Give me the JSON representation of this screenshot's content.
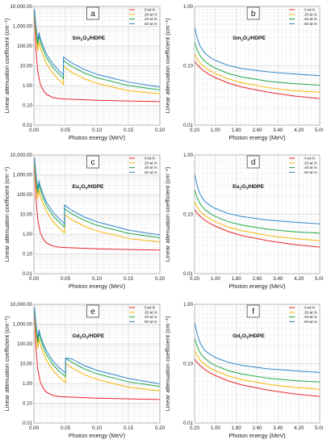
{
  "chart_data": [
    {
      "type": "line",
      "panel": "a",
      "title": {
        "pre": "Sm",
        "s1": "2",
        "mid": "O",
        "s2": "3",
        "post": "/HDPE"
      },
      "xlabel": "Photon energy (MeV)",
      "ylabel": "Linear attenuation coefficient (cm⁻¹)",
      "xscale": "linear",
      "yscale": "log",
      "xlim": [
        0,
        0.2
      ],
      "ylim": [
        0.01,
        10000
      ],
      "xticks": [
        "0.00",
        "0.05",
        "0.10",
        "0.15",
        "0.20"
      ],
      "yticks": [
        "0.01",
        "0.10",
        "1.00",
        "10.00",
        "100.00",
        "1,000.00",
        "10,000.00"
      ],
      "legend_position": "top-right",
      "series": [
        {
          "name": "0 wt.%",
          "color": "#e8262b",
          "x": [
            0.001,
            0.003,
            0.006,
            0.01,
            0.015,
            0.02,
            0.03,
            0.04,
            0.05,
            0.08,
            0.1,
            0.15,
            0.2
          ],
          "y": [
            3000,
            80,
            5.5,
            1.2,
            0.55,
            0.36,
            0.25,
            0.22,
            0.21,
            0.19,
            0.18,
            0.165,
            0.155
          ]
        },
        {
          "name": "20 wt.%",
          "color": "#f5b800",
          "x": [
            0.001,
            0.003,
            0.006,
            0.008,
            0.01,
            0.015,
            0.02,
            0.03,
            0.04,
            0.0468,
            0.0469,
            0.05,
            0.06,
            0.08,
            0.1,
            0.15,
            0.2
          ],
          "y": [
            4500,
            400,
            60,
            160,
            85,
            30,
            13,
            4.2,
            1.9,
            1.15,
            9.5,
            7.8,
            4.7,
            2.2,
            1.3,
            0.55,
            0.38
          ]
        },
        {
          "name": "40 wt.%",
          "color": "#1daa4a",
          "x": [
            0.001,
            0.003,
            0.006,
            0.008,
            0.01,
            0.015,
            0.02,
            0.03,
            0.04,
            0.0468,
            0.0469,
            0.05,
            0.06,
            0.08,
            0.1,
            0.15,
            0.2
          ],
          "y": [
            5500,
            800,
            120,
            320,
            170,
            60,
            26,
            8.3,
            3.8,
            2.3,
            19,
            15.5,
            9.3,
            4.3,
            2.5,
            1.0,
            0.6
          ]
        },
        {
          "name": "60 wt.%",
          "color": "#2e86c8",
          "x": [
            0.001,
            0.003,
            0.006,
            0.008,
            0.01,
            0.015,
            0.02,
            0.03,
            0.04,
            0.0468,
            0.0469,
            0.05,
            0.06,
            0.08,
            0.1,
            0.15,
            0.2
          ],
          "y": [
            7000,
            1200,
            180,
            480,
            255,
            90,
            39,
            12.5,
            5.6,
            3.4,
            28,
            23,
            14,
            6.5,
            3.7,
            1.5,
            0.85
          ]
        }
      ]
    },
    {
      "type": "line",
      "panel": "b",
      "title": {
        "pre": "Sm",
        "s1": "2",
        "mid": "O",
        "s2": "3",
        "post": "/HDPE"
      },
      "xlabel": "Photon energy (MeV)",
      "ylabel": "Linear attenuation coefficient (cm⁻¹)",
      "xscale": "linear",
      "yscale": "log",
      "xlim": [
        0.2,
        5.0
      ],
      "ylim": [
        0.01,
        1.0
      ],
      "xticks": [
        "0.20",
        "1.00",
        "1.80",
        "2.60",
        "3.40",
        "4.20",
        "5.00"
      ],
      "yticks": [
        "0.01",
        "0.10",
        "1.00"
      ],
      "legend_position": "top-right",
      "series": [
        {
          "name": "0 wt.%",
          "color": "#e8262b",
          "x": [
            0.2,
            0.3,
            0.4,
            0.5,
            0.6,
            0.8,
            1.0,
            1.5,
            2.0,
            3.0,
            4.0,
            5.0
          ],
          "y": [
            0.12,
            0.104,
            0.094,
            0.086,
            0.079,
            0.07,
            0.063,
            0.051,
            0.044,
            0.036,
            0.031,
            0.028
          ]
        },
        {
          "name": "20 wt.%",
          "color": "#f5b800",
          "x": [
            0.2,
            0.3,
            0.4,
            0.5,
            0.6,
            0.8,
            1.0,
            1.5,
            2.0,
            3.0,
            4.0,
            5.0
          ],
          "y": [
            0.16,
            0.13,
            0.112,
            0.102,
            0.094,
            0.082,
            0.074,
            0.06,
            0.052,
            0.043,
            0.038,
            0.036
          ]
        },
        {
          "name": "40 wt.%",
          "color": "#1daa4a",
          "x": [
            0.2,
            0.3,
            0.4,
            0.5,
            0.6,
            0.8,
            1.0,
            1.5,
            2.0,
            3.0,
            4.0,
            5.0
          ],
          "y": [
            0.25,
            0.185,
            0.15,
            0.132,
            0.118,
            0.102,
            0.091,
            0.074,
            0.065,
            0.055,
            0.05,
            0.047
          ]
        },
        {
          "name": "60 wt.%",
          "color": "#2e86c8",
          "x": [
            0.2,
            0.3,
            0.4,
            0.5,
            0.6,
            0.8,
            1.0,
            1.5,
            2.0,
            3.0,
            4.0,
            5.0
          ],
          "y": [
            0.45,
            0.29,
            0.22,
            0.185,
            0.162,
            0.138,
            0.123,
            0.101,
            0.09,
            0.079,
            0.073,
            0.068
          ]
        }
      ]
    },
    {
      "type": "line",
      "panel": "c",
      "title": {
        "pre": "Eu",
        "s1": "2",
        "mid": "O",
        "s2": "3",
        "post": "/HDPE"
      },
      "xlabel": "Photon energy (MeV)",
      "ylabel": "Linear attenuation coefficient (cm⁻¹)",
      "xscale": "linear",
      "yscale": "log",
      "xlim": [
        0,
        0.2
      ],
      "ylim": [
        0.01,
        10000
      ],
      "xticks": [
        "0.00",
        "0.05",
        "0.10",
        "0.15",
        "0.20"
      ],
      "yticks": [
        "0.01",
        "0.10",
        "1.00",
        "10.00",
        "100.00",
        "1,000.00",
        "10,000.00"
      ],
      "legend_position": "top-right",
      "series": [
        {
          "name": "0 wt.%",
          "color": "#e8262b",
          "x": [
            0.001,
            0.003,
            0.006,
            0.01,
            0.015,
            0.02,
            0.03,
            0.04,
            0.05,
            0.08,
            0.1,
            0.15,
            0.2
          ],
          "y": [
            3000,
            80,
            5.5,
            1.2,
            0.55,
            0.36,
            0.25,
            0.22,
            0.21,
            0.19,
            0.18,
            0.165,
            0.155
          ]
        },
        {
          "name": "20 wt.%",
          "color": "#f5b800",
          "x": [
            0.001,
            0.003,
            0.006,
            0.008,
            0.01,
            0.015,
            0.02,
            0.03,
            0.04,
            0.0485,
            0.0486,
            0.05,
            0.06,
            0.08,
            0.1,
            0.15,
            0.2
          ],
          "y": [
            4500,
            400,
            60,
            170,
            90,
            32,
            14,
            4.4,
            2.0,
            1.15,
            10,
            9.0,
            5.4,
            2.5,
            1.45,
            0.6,
            0.4
          ]
        },
        {
          "name": "40 wt.%",
          "color": "#1daa4a",
          "x": [
            0.001,
            0.003,
            0.006,
            0.008,
            0.01,
            0.015,
            0.02,
            0.03,
            0.04,
            0.0485,
            0.0486,
            0.05,
            0.06,
            0.08,
            0.1,
            0.15,
            0.2
          ],
          "y": [
            5500,
            800,
            120,
            340,
            180,
            64,
            27,
            8.7,
            4.0,
            2.3,
            20,
            18,
            10.7,
            4.9,
            2.8,
            1.1,
            0.65
          ]
        },
        {
          "name": "60 wt.%",
          "color": "#2e86c8",
          "x": [
            0.001,
            0.003,
            0.006,
            0.008,
            0.01,
            0.015,
            0.02,
            0.03,
            0.04,
            0.0485,
            0.0486,
            0.05,
            0.06,
            0.08,
            0.1,
            0.15,
            0.2
          ],
          "y": [
            7000,
            1200,
            180,
            500,
            270,
            96,
            41,
            13,
            6.0,
            3.4,
            30,
            27,
            16,
            7.3,
            4.2,
            1.6,
            0.9
          ]
        }
      ]
    },
    {
      "type": "line",
      "panel": "d",
      "title": {
        "pre": "Eu",
        "s1": "2",
        "mid": "O",
        "s2": "3",
        "post": "/HDPE"
      },
      "xlabel": "Photon energy (MeV)",
      "ylabel": "Linear attenuation coefficient (cm⁻¹)",
      "xscale": "linear",
      "yscale": "log",
      "xlim": [
        0.2,
        5.0
      ],
      "ylim": [
        0.01,
        1.0
      ],
      "xticks": [
        "0.20",
        "1.00",
        "1.80",
        "2.60",
        "3.40",
        "4.20",
        "5.00"
      ],
      "yticks": [
        "0.01",
        "0.10",
        "1.00"
      ],
      "legend_position": "top-right",
      "series": [
        {
          "name": "0 wt.%",
          "color": "#e8262b",
          "x": [
            0.2,
            0.3,
            0.4,
            0.5,
            0.6,
            0.8,
            1.0,
            1.5,
            2.0,
            3.0,
            4.0,
            5.0
          ],
          "y": [
            0.12,
            0.104,
            0.094,
            0.086,
            0.079,
            0.07,
            0.063,
            0.051,
            0.044,
            0.036,
            0.031,
            0.028
          ]
        },
        {
          "name": "20 wt.%",
          "color": "#f5b800",
          "x": [
            0.2,
            0.3,
            0.4,
            0.5,
            0.6,
            0.8,
            1.0,
            1.5,
            2.0,
            3.0,
            4.0,
            5.0
          ],
          "y": [
            0.165,
            0.133,
            0.114,
            0.103,
            0.095,
            0.083,
            0.075,
            0.061,
            0.053,
            0.044,
            0.039,
            0.036
          ]
        },
        {
          "name": "40 wt.%",
          "color": "#1daa4a",
          "x": [
            0.2,
            0.3,
            0.4,
            0.5,
            0.6,
            0.8,
            1.0,
            1.5,
            2.0,
            3.0,
            4.0,
            5.0
          ],
          "y": [
            0.26,
            0.19,
            0.153,
            0.134,
            0.12,
            0.103,
            0.092,
            0.075,
            0.066,
            0.056,
            0.051,
            0.048
          ]
        },
        {
          "name": "60 wt.%",
          "color": "#2e86c8",
          "x": [
            0.2,
            0.3,
            0.4,
            0.5,
            0.6,
            0.8,
            1.0,
            1.5,
            2.0,
            3.0,
            4.0,
            5.0
          ],
          "y": [
            0.48,
            0.3,
            0.225,
            0.188,
            0.164,
            0.14,
            0.125,
            0.103,
            0.092,
            0.08,
            0.074,
            0.069
          ]
        }
      ]
    },
    {
      "type": "line",
      "panel": "e",
      "title": {
        "pre": "Gd",
        "s1": "2",
        "mid": "O",
        "s2": "3",
        "post": "/HDPE"
      },
      "xlabel": "Photon energy (MeV)",
      "ylabel": "Linear attenuation coefficient (cm⁻¹)",
      "xscale": "linear",
      "yscale": "log",
      "xlim": [
        0,
        0.2
      ],
      "ylim": [
        0.01,
        10000
      ],
      "xticks": [
        "0.00",
        "0.05",
        "0.10",
        "0.15",
        "0.20"
      ],
      "yticks": [
        "0.01",
        "0.10",
        "1.00",
        "10.00",
        "100.00",
        "1,000.00",
        "10,000.00"
      ],
      "legend_position": "top-right",
      "series": [
        {
          "name": "0 wt.%",
          "color": "#e8262b",
          "x": [
            0.001,
            0.003,
            0.006,
            0.01,
            0.015,
            0.02,
            0.03,
            0.04,
            0.05,
            0.08,
            0.1,
            0.15,
            0.2
          ],
          "y": [
            3000,
            80,
            5.5,
            1.2,
            0.55,
            0.36,
            0.25,
            0.22,
            0.21,
            0.19,
            0.18,
            0.165,
            0.155
          ]
        },
        {
          "name": "20 wt.%",
          "color": "#f5b800",
          "x": [
            0.001,
            0.003,
            0.006,
            0.008,
            0.01,
            0.015,
            0.02,
            0.03,
            0.04,
            0.0502,
            0.0503,
            0.06,
            0.08,
            0.1,
            0.15,
            0.2
          ],
          "y": [
            4500,
            400,
            60,
            180,
            95,
            34,
            15,
            4.7,
            2.1,
            1.1,
            10,
            6.2,
            2.8,
            1.6,
            0.65,
            0.42
          ]
        },
        {
          "name": "40 wt.%",
          "color": "#1daa4a",
          "x": [
            0.001,
            0.003,
            0.006,
            0.008,
            0.01,
            0.015,
            0.02,
            0.03,
            0.04,
            0.0502,
            0.0503,
            0.06,
            0.08,
            0.1,
            0.15,
            0.2
          ],
          "y": [
            5500,
            800,
            120,
            360,
            190,
            68,
            29,
            9.2,
            4.2,
            2.2,
            19,
            12,
            5.4,
            3.1,
            1.2,
            0.7
          ]
        },
        {
          "name": "60 wt.%",
          "color": "#2e86c8",
          "x": [
            0.001,
            0.003,
            0.006,
            0.008,
            0.01,
            0.015,
            0.02,
            0.03,
            0.04,
            0.0502,
            0.0503,
            0.06,
            0.08,
            0.1,
            0.15,
            0.2
          ],
          "y": [
            7000,
            1200,
            180,
            520,
            285,
            100,
            44,
            14,
            6.3,
            3.3,
            19,
            17.5,
            8.0,
            4.6,
            1.8,
            0.95
          ]
        }
      ]
    },
    {
      "type": "line",
      "panel": "f",
      "title": {
        "pre": "Gd",
        "s1": "2",
        "mid": "O",
        "s2": "3",
        "post": "/HDPE"
      },
      "xlabel": "Photon energy (MeV)",
      "ylabel": "Linear attenuation coefficient (cm⁻¹)",
      "xscale": "linear",
      "yscale": "log",
      "xlim": [
        0.2,
        5.0
      ],
      "ylim": [
        0.01,
        1.0
      ],
      "xticks": [
        "0.20",
        "1.00",
        "1.80",
        "2.60",
        "3.40",
        "4.20",
        "5.00"
      ],
      "yticks": [
        "0.01",
        "0.10",
        "1.00"
      ],
      "legend_position": "top-right",
      "series": [
        {
          "name": "0 wt.%",
          "color": "#e8262b",
          "x": [
            0.2,
            0.3,
            0.4,
            0.5,
            0.6,
            0.8,
            1.0,
            1.5,
            2.0,
            3.0,
            4.0,
            5.0
          ],
          "y": [
            0.12,
            0.104,
            0.094,
            0.086,
            0.079,
            0.07,
            0.063,
            0.051,
            0.044,
            0.036,
            0.031,
            0.028
          ]
        },
        {
          "name": "20 wt.%",
          "color": "#f5b800",
          "x": [
            0.2,
            0.3,
            0.4,
            0.5,
            0.6,
            0.8,
            1.0,
            1.5,
            2.0,
            3.0,
            4.0,
            5.0
          ],
          "y": [
            0.17,
            0.136,
            0.116,
            0.105,
            0.096,
            0.084,
            0.076,
            0.062,
            0.054,
            0.045,
            0.04,
            0.037
          ]
        },
        {
          "name": "40 wt.%",
          "color": "#1daa4a",
          "x": [
            0.2,
            0.3,
            0.4,
            0.5,
            0.6,
            0.8,
            1.0,
            1.5,
            2.0,
            3.0,
            4.0,
            5.0
          ],
          "y": [
            0.27,
            0.195,
            0.156,
            0.136,
            0.122,
            0.104,
            0.093,
            0.076,
            0.067,
            0.057,
            0.052,
            0.049
          ]
        },
        {
          "name": "60 wt.%",
          "color": "#2e86c8",
          "x": [
            0.2,
            0.3,
            0.4,
            0.5,
            0.6,
            0.8,
            1.0,
            1.5,
            2.0,
            3.0,
            4.0,
            5.0
          ],
          "y": [
            0.5,
            0.31,
            0.23,
            0.19,
            0.166,
            0.142,
            0.127,
            0.105,
            0.094,
            0.082,
            0.076,
            0.071
          ]
        }
      ]
    }
  ]
}
